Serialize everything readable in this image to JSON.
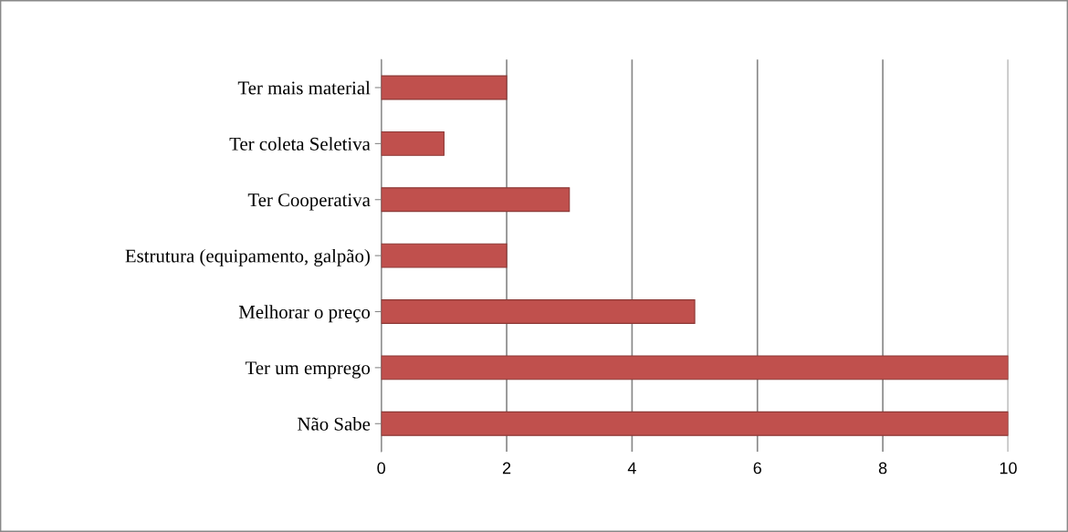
{
  "chart_data": {
    "type": "bar",
    "orientation": "horizontal",
    "categories": [
      "Ter mais material",
      "Ter coleta Seletiva",
      "Ter Cooperativa",
      "Estrutura (equipamento, galpão)",
      "Melhorar o preço",
      "Ter um emprego",
      "Não Sabe"
    ],
    "values": [
      2,
      1,
      3,
      2,
      5,
      10,
      10
    ],
    "color": "#c0504d",
    "xlim": [
      0,
      10
    ],
    "xticks": [
      0,
      2,
      4,
      6,
      8,
      10
    ],
    "grid": "x",
    "legend": false
  }
}
